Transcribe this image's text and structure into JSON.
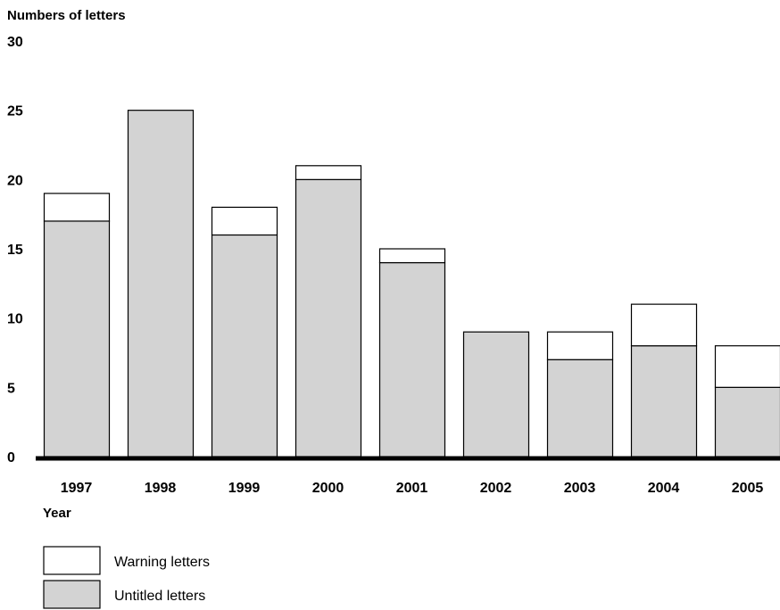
{
  "chart_data": {
    "type": "bar",
    "stacked": true,
    "ylabel": "Numbers of letters",
    "xlabel": "Year",
    "ylim": [
      0,
      30
    ],
    "yticks": [
      0,
      5,
      10,
      15,
      20,
      25,
      30
    ],
    "grid": false,
    "legend_position": "bottom-left",
    "categories": [
      "1997",
      "1998",
      "1999",
      "2000",
      "2001",
      "2002",
      "2003",
      "2004",
      "2005"
    ],
    "series": [
      {
        "name": "Untitled letters",
        "color": "#d3d3d3",
        "values": [
          17,
          25,
          16,
          20,
          14,
          9,
          7,
          8,
          5
        ]
      },
      {
        "name": "Warning letters",
        "color": "#ffffff",
        "values": [
          2,
          0,
          2,
          1,
          1,
          0,
          2,
          3,
          3
        ]
      }
    ],
    "legend_order": [
      "Warning letters",
      "Untitled letters"
    ]
  }
}
